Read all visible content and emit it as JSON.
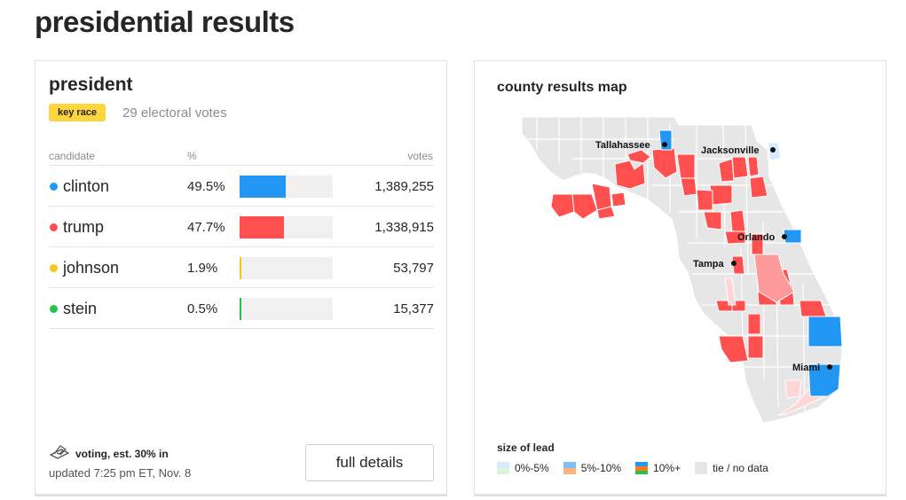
{
  "page_title": "presidential results",
  "race": {
    "title": "president",
    "badge": "key race",
    "electoral_votes": "29 electoral votes",
    "headers": {
      "candidate": "candidate",
      "pct": "%",
      "votes": "votes"
    },
    "candidates": [
      {
        "name": "clinton",
        "pct": "49.5%",
        "pct_value": 49.5,
        "votes": "1,389,255",
        "color": "#2196f3"
      },
      {
        "name": "trump",
        "pct": "47.7%",
        "pct_value": 47.7,
        "votes": "1,338,915",
        "color": "#ff4f4f"
      },
      {
        "name": "johnson",
        "pct": "1.9%",
        "pct_value": 1.9,
        "votes": "53,797",
        "color": "#f5c518"
      },
      {
        "name": "stein",
        "pct": "0.5%",
        "pct_value": 0.5,
        "votes": "15,377",
        "color": "#28c24a"
      }
    ],
    "status": "voting, est. 30% in",
    "updated": "updated 7:25 pm ET, Nov. 8",
    "details_button": "full details"
  },
  "map": {
    "title": "county results map",
    "cities": [
      "Tallahassee",
      "Jacksonville",
      "Orlando",
      "Tampa",
      "Miami"
    ],
    "legend_title": "size of lead",
    "legend": [
      "0%-5%",
      "5%-10%",
      "10%+",
      "tie / no data"
    ],
    "colors": {
      "dem": "#2196f3",
      "rep": "#ff4f4f",
      "rep_mid": "#ff9a9a",
      "rep_low": "#ffd6d6",
      "none": "#e6e6e6"
    }
  }
}
